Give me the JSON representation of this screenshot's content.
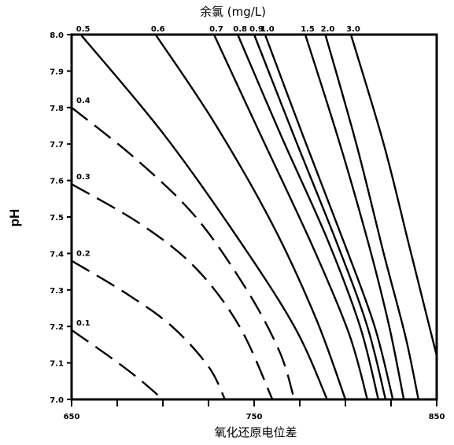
{
  "chart_data": {
    "type": "line",
    "title": "余氯 (mg/L)",
    "xlabel": "氧化还原电位差",
    "ylabel": "pH",
    "xlim": [
      650,
      850
    ],
    "ylim": [
      7.0,
      8.0
    ],
    "x_ticks": [
      650,
      750,
      850
    ],
    "y_ticks": [
      7.0,
      7.1,
      7.2,
      7.3,
      7.4,
      7.5,
      7.6,
      7.7,
      7.8,
      7.9,
      8.0
    ],
    "y_tick_labels": [
      "7.0",
      "7.1",
      "7.2",
      "7.3",
      "7.4",
      "7.5",
      "7.6",
      "7.7",
      "7.8",
      "7.9",
      "8.0"
    ],
    "grid": false,
    "legend": "none",
    "series": [
      {
        "name": "0.1",
        "label_position": "left",
        "dashed": true,
        "points": [
          [
            650,
            7.19
          ],
          [
            670,
            7.12
          ],
          [
            686,
            7.06
          ],
          [
            700,
            7.0
          ]
        ]
      },
      {
        "name": "0.2",
        "label_position": "left",
        "dashed": true,
        "points": [
          [
            650,
            7.38
          ],
          [
            680,
            7.29
          ],
          [
            705,
            7.2
          ],
          [
            725,
            7.09
          ],
          [
            734,
            7.0
          ]
        ]
      },
      {
        "name": "0.3",
        "label_position": "left",
        "dashed": true,
        "points": [
          [
            650,
            7.59
          ],
          [
            688,
            7.48
          ],
          [
            718,
            7.36
          ],
          [
            742,
            7.2
          ],
          [
            760,
            7.0
          ]
        ]
      },
      {
        "name": "0.4",
        "label_position": "left",
        "dashed": true,
        "points": [
          [
            650,
            7.8
          ],
          [
            685,
            7.66
          ],
          [
            718,
            7.5
          ],
          [
            746,
            7.3
          ],
          [
            764,
            7.13
          ],
          [
            772,
            7.0
          ]
        ]
      },
      {
        "name": "0.5",
        "label_position": "top",
        "dashed": false,
        "points": [
          [
            655,
            8.0
          ],
          [
            700,
            7.73
          ],
          [
            740,
            7.45
          ],
          [
            772,
            7.2
          ],
          [
            790,
            7.0
          ]
        ]
      },
      {
        "name": "0.6",
        "label_position": "top",
        "dashed": false,
        "points": [
          [
            696,
            8.0
          ],
          [
            728,
            7.76
          ],
          [
            760,
            7.48
          ],
          [
            784,
            7.22
          ],
          [
            800,
            7.0
          ]
        ]
      },
      {
        "name": "0.7",
        "label_position": "top",
        "dashed": false,
        "points": [
          [
            728,
            8.0
          ],
          [
            754,
            7.72
          ],
          [
            782,
            7.42
          ],
          [
            802,
            7.18
          ],
          [
            812,
            7.0
          ]
        ]
      },
      {
        "name": "0.8",
        "label_position": "top",
        "dashed": false,
        "points": [
          [
            741,
            8.0
          ],
          [
            765,
            7.72
          ],
          [
            790,
            7.44
          ],
          [
            808,
            7.2
          ],
          [
            818,
            7.0
          ]
        ]
      },
      {
        "name": "0.9",
        "label_position": "top",
        "dashed": false,
        "points": [
          [
            750,
            8.0
          ],
          [
            772,
            7.72
          ],
          [
            796,
            7.42
          ],
          [
            812,
            7.2
          ],
          [
            822,
            7.0
          ]
        ]
      },
      {
        "name": "1.0",
        "label_position": "top",
        "dashed": false,
        "points": [
          [
            756,
            8.0
          ],
          [
            777,
            7.72
          ],
          [
            800,
            7.42
          ],
          [
            816,
            7.2
          ],
          [
            826,
            7.0
          ]
        ]
      },
      {
        "name": "1.5",
        "label_position": "top",
        "dashed": false,
        "points": [
          [
            778,
            8.0
          ],
          [
            797,
            7.7
          ],
          [
            813,
            7.42
          ],
          [
            824,
            7.2
          ],
          [
            832,
            7.0
          ]
        ]
      },
      {
        "name": "2.0",
        "label_position": "top",
        "dashed": false,
        "points": [
          [
            789,
            8.0
          ],
          [
            806,
            7.7
          ],
          [
            821,
            7.4
          ],
          [
            833,
            7.17
          ],
          [
            840,
            7.0
          ]
        ]
      },
      {
        "name": "3.0",
        "label_position": "top",
        "dashed": false,
        "points": [
          [
            803,
            8.0
          ],
          [
            821,
            7.7
          ],
          [
            835,
            7.42
          ],
          [
            846,
            7.2
          ],
          [
            850,
            7.12
          ]
        ]
      }
    ]
  }
}
